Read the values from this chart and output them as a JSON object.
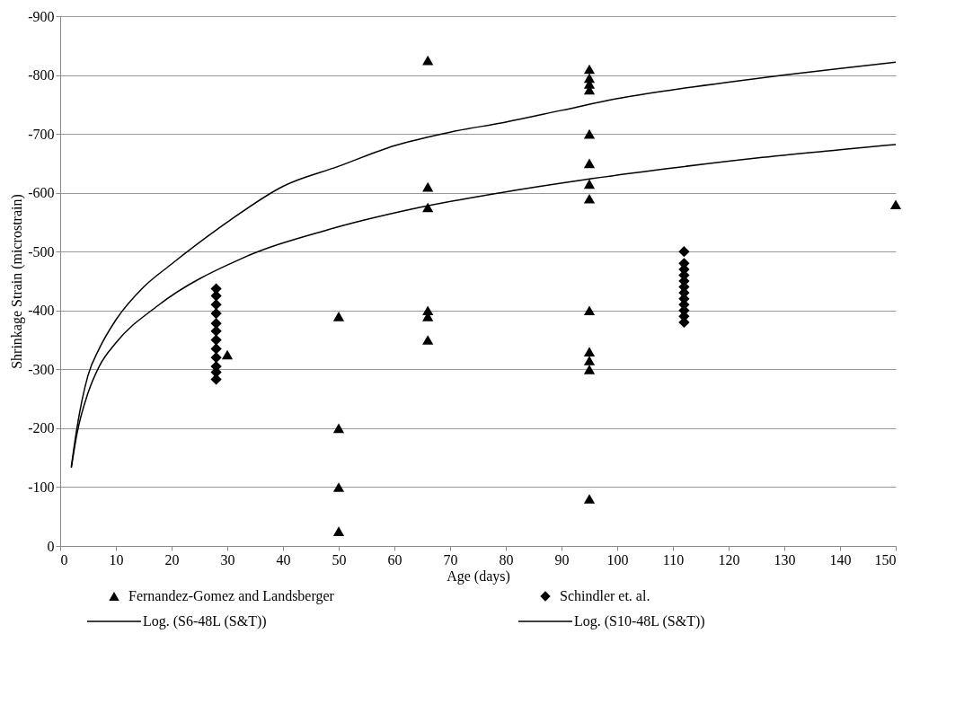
{
  "chart_data": {
    "type": "scatter",
    "xlabel": "Age (days)",
    "ylabel": "Shrinkage Strain (microstrain)",
    "xlim": [
      0,
      150
    ],
    "xticks": [
      0,
      10,
      20,
      30,
      40,
      50,
      60,
      70,
      80,
      90,
      100,
      110,
      120,
      130,
      140,
      150
    ],
    "ylim": [
      0,
      -900
    ],
    "yticks": [
      0,
      -100,
      -200,
      -300,
      -400,
      -500,
      -600,
      -700,
      -800,
      -900
    ],
    "grid": "y",
    "legend": "bottom",
    "series": [
      {
        "name": "Fernandez-Gomez and Landsberger",
        "marker": "triangle",
        "color": "#000000",
        "x": [
          30,
          50,
          50,
          50,
          50,
          66,
          66,
          66,
          66,
          66,
          66,
          95,
          95,
          95,
          95,
          95,
          95,
          95,
          95,
          95,
          95,
          95,
          95,
          95,
          150
        ],
        "values": [
          -325,
          -390,
          -200,
          -100,
          -25,
          -825,
          -610,
          -575,
          -400,
          -390,
          -350,
          -810,
          -795,
          -785,
          -775,
          -700,
          -650,
          -615,
          -590,
          -400,
          -330,
          -315,
          -300,
          -80,
          -580
        ]
      },
      {
        "name": "Schindler et. al.",
        "marker": "diamond",
        "color": "#000000",
        "x": [
          28,
          28,
          28,
          28,
          28,
          28,
          28,
          28,
          28,
          28,
          28,
          28,
          112,
          112,
          112,
          112,
          112,
          112,
          112,
          112,
          112,
          112,
          112,
          112
        ],
        "values": [
          -437,
          -425,
          -410,
          -395,
          -378,
          -365,
          -350,
          -335,
          -320,
          -305,
          -295,
          -283,
          -500,
          -480,
          -470,
          -460,
          -450,
          -440,
          -430,
          -420,
          -410,
          -400,
          -390,
          -380
        ]
      },
      {
        "name": "Log. (S6-48L (S&T))",
        "type": "line",
        "line_style": "solid",
        "color": "#000000",
        "x": [
          2,
          3,
          5,
          7,
          10,
          15,
          20,
          30,
          40,
          50,
          60,
          70,
          80,
          90,
          100,
          110,
          120,
          130,
          140,
          150
        ],
        "values": [
          -135,
          -200,
          -290,
          -335,
          -384,
          -440,
          -479,
          -550,
          -611,
          -645,
          -680,
          -703,
          -720,
          -740,
          -760,
          -775,
          -788,
          -800,
          -811,
          -822
        ]
      },
      {
        "name": "Log. (S10-48L (S&T))",
        "type": "line",
        "line_style": "solid",
        "color": "#000000",
        "x": [
          2,
          3,
          5,
          7,
          10,
          17.5,
          32.5,
          48,
          63,
          79,
          94,
          109,
          125,
          140,
          150
        ],
        "values": [
          -133,
          -190,
          -260,
          -305,
          -345,
          -408,
          -488,
          -537,
          -572,
          -600,
          -622,
          -641,
          -659,
          -673,
          -682
        ]
      }
    ]
  }
}
